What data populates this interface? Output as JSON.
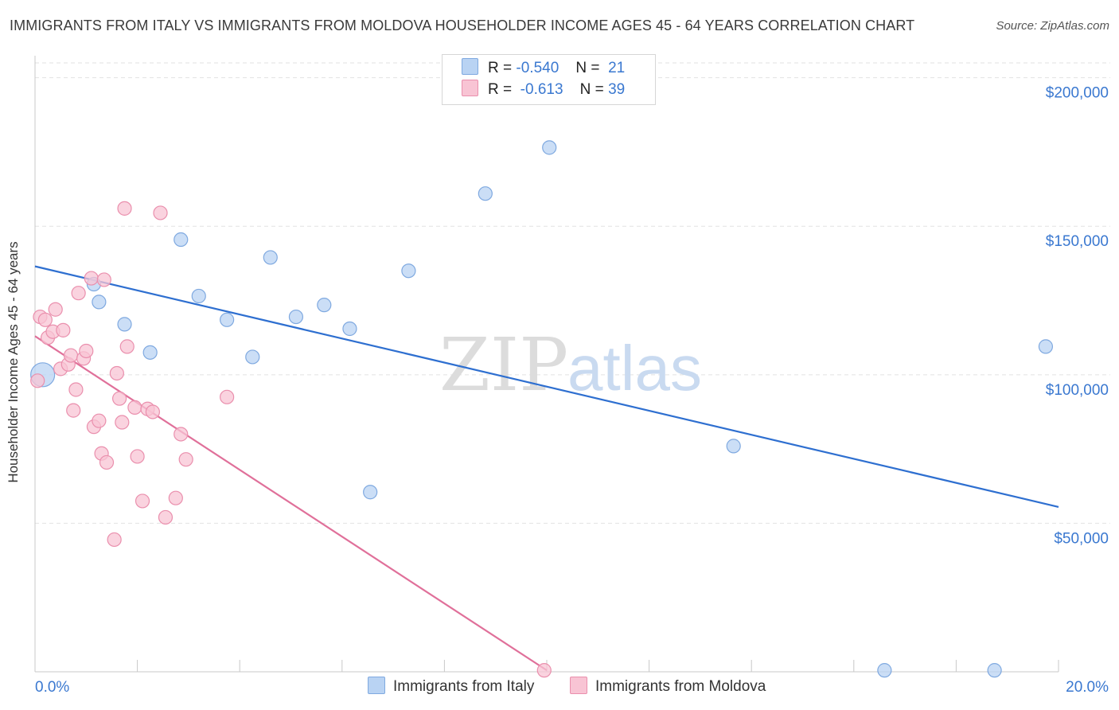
{
  "title": "IMMIGRANTS FROM ITALY VS IMMIGRANTS FROM MOLDOVA HOUSEHOLDER INCOME AGES 45 - 64 YEARS CORRELATION CHART",
  "source": "Source: ZipAtlas.com",
  "watermark": {
    "zip": "ZIP",
    "atlas": "atlas"
  },
  "legend": {
    "italy": {
      "r_label": "R =",
      "r_value": "-0.540",
      "n_label": "N =",
      "n_value": "21"
    },
    "moldova": {
      "r_label": "R =",
      "r_value": "-0.613",
      "n_label": "N =",
      "n_value": "39"
    }
  },
  "bottom_legend": {
    "italy": "Immigrants from Italy",
    "moldova": "Immigrants from Moldova"
  },
  "colors": {
    "italy_fill": "#b9d3f3",
    "italy_stroke": "#7fa9e0",
    "italy_line": "#2e6fd0",
    "moldova_fill": "#f8c4d4",
    "moldova_stroke": "#ea8fad",
    "moldova_line": "#e0709a",
    "tick_label": "#3a78d0",
    "grid": "#e2e2e2"
  },
  "chart_data": {
    "type": "scatter",
    "title": "IMMIGRANTS FROM ITALY VS IMMIGRANTS FROM MOLDOVA HOUSEHOLDER INCOME AGES 45 - 64 YEARS CORRELATION CHART",
    "xlabel": "",
    "ylabel": "Householder Income Ages 45 - 64 years",
    "xlim": [
      0,
      20
    ],
    "ylim": [
      0,
      205000
    ],
    "x_tick_labels": [
      {
        "value": 0,
        "label": "0.0%"
      },
      {
        "value": 20,
        "label": "20.0%"
      }
    ],
    "y_ticks": [
      {
        "value": 50000,
        "label": "$50,000"
      },
      {
        "value": 100000,
        "label": "$100,000"
      },
      {
        "value": 150000,
        "label": "$150,000"
      },
      {
        "value": 200000,
        "label": "$200,000"
      }
    ],
    "series": [
      {
        "name": "Immigrants from Italy",
        "key": "italy",
        "trend": {
          "x": [
            0,
            20
          ],
          "y": [
            136500,
            55500
          ]
        },
        "points": [
          {
            "x": 0.15,
            "y": 100000,
            "big": true
          },
          {
            "x": 1.15,
            "y": 130500
          },
          {
            "x": 1.25,
            "y": 124500
          },
          {
            "x": 1.75,
            "y": 117000
          },
          {
            "x": 2.25,
            "y": 107500
          },
          {
            "x": 2.85,
            "y": 145500
          },
          {
            "x": 3.2,
            "y": 126500
          },
          {
            "x": 3.75,
            "y": 118500
          },
          {
            "x": 4.25,
            "y": 106000
          },
          {
            "x": 4.6,
            "y": 139500
          },
          {
            "x": 5.1,
            "y": 119500
          },
          {
            "x": 5.65,
            "y": 123500
          },
          {
            "x": 6.15,
            "y": 115500
          },
          {
            "x": 6.55,
            "y": 60500
          },
          {
            "x": 7.3,
            "y": 135000
          },
          {
            "x": 8.8,
            "y": 161000
          },
          {
            "x": 10.05,
            "y": 176500
          },
          {
            "x": 13.65,
            "y": 76000
          },
          {
            "x": 16.6,
            "y": 500
          },
          {
            "x": 18.75,
            "y": 500
          },
          {
            "x": 19.75,
            "y": 109500
          }
        ]
      },
      {
        "name": "Immigrants from Moldova",
        "key": "moldova",
        "trend": {
          "x": [
            0,
            10
          ],
          "y": [
            113000,
            500
          ]
        },
        "points": [
          {
            "x": 0.05,
            "y": 98000
          },
          {
            "x": 0.1,
            "y": 119500
          },
          {
            "x": 0.2,
            "y": 118500
          },
          {
            "x": 0.25,
            "y": 112500
          },
          {
            "x": 0.35,
            "y": 114500
          },
          {
            "x": 0.4,
            "y": 122000
          },
          {
            "x": 0.5,
            "y": 102000
          },
          {
            "x": 0.55,
            "y": 115000
          },
          {
            "x": 0.65,
            "y": 103500
          },
          {
            "x": 0.7,
            "y": 106500
          },
          {
            "x": 0.75,
            "y": 88000
          },
          {
            "x": 0.8,
            "y": 95000
          },
          {
            "x": 0.85,
            "y": 127500
          },
          {
            "x": 0.95,
            "y": 105500
          },
          {
            "x": 1.0,
            "y": 108000
          },
          {
            "x": 1.1,
            "y": 132500
          },
          {
            "x": 1.15,
            "y": 82500
          },
          {
            "x": 1.25,
            "y": 84500
          },
          {
            "x": 1.3,
            "y": 73500
          },
          {
            "x": 1.35,
            "y": 132000
          },
          {
            "x": 1.4,
            "y": 70500
          },
          {
            "x": 1.55,
            "y": 44500
          },
          {
            "x": 1.6,
            "y": 100500
          },
          {
            "x": 1.65,
            "y": 92000
          },
          {
            "x": 1.7,
            "y": 84000
          },
          {
            "x": 1.75,
            "y": 156000
          },
          {
            "x": 1.8,
            "y": 109500
          },
          {
            "x": 1.95,
            "y": 89000
          },
          {
            "x": 2.0,
            "y": 72500
          },
          {
            "x": 2.1,
            "y": 57500
          },
          {
            "x": 2.2,
            "y": 88500
          },
          {
            "x": 2.3,
            "y": 87500
          },
          {
            "x": 2.45,
            "y": 154500
          },
          {
            "x": 2.55,
            "y": 52000
          },
          {
            "x": 2.75,
            "y": 58500
          },
          {
            "x": 2.85,
            "y": 80000
          },
          {
            "x": 2.95,
            "y": 71500
          },
          {
            "x": 3.75,
            "y": 92500
          },
          {
            "x": 9.95,
            "y": 500
          }
        ]
      }
    ]
  },
  "axis_labels": {
    "x_min": "0.0%",
    "x_max": "20.0%",
    "ylabel": "Householder Income Ages 45 - 64 years"
  }
}
